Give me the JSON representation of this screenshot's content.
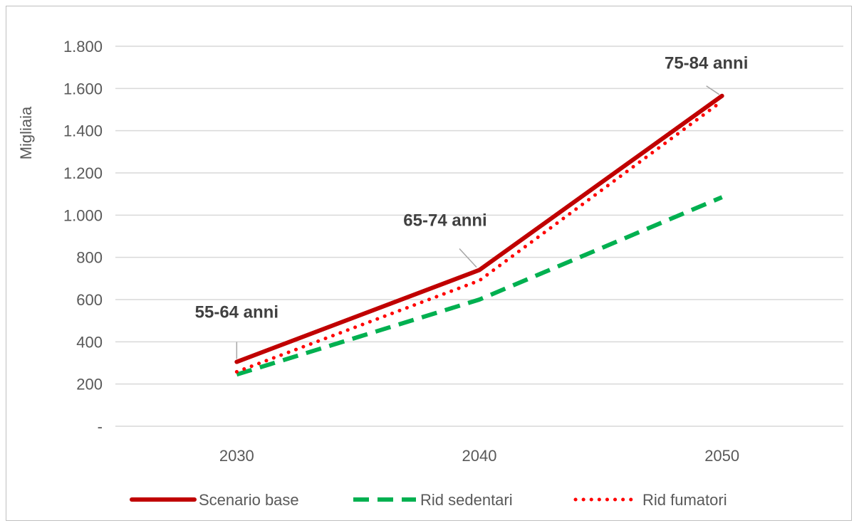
{
  "chart_data": {
    "type": "line",
    "categories": [
      "2030",
      "2040",
      "2050"
    ],
    "ylabel": "Migliaia",
    "ylim": [
      0,
      1800
    ],
    "yticks": [
      {
        "value": 0,
        "label": "-"
      },
      {
        "value": 200,
        "label": "200"
      },
      {
        "value": 400,
        "label": "400"
      },
      {
        "value": 600,
        "label": "600"
      },
      {
        "value": 800,
        "label": "800"
      },
      {
        "value": 1000,
        "label": "1.000"
      },
      {
        "value": 1200,
        "label": "1.200"
      },
      {
        "value": 1400,
        "label": "1.400"
      },
      {
        "value": 1600,
        "label": "1.600"
      },
      {
        "value": 1800,
        "label": "1.800"
      }
    ],
    "grid": true,
    "legend_position": "bottom",
    "series": [
      {
        "name": "Scenario base",
        "values": [
          305,
          740,
          1565
        ],
        "color": "#c00000",
        "style": "solid"
      },
      {
        "name": "Rid sedentari",
        "values": [
          245,
          600,
          1085
        ],
        "color": "#00b050",
        "style": "dashed"
      },
      {
        "name": "Rid fumatori",
        "values": [
          258,
          690,
          1540
        ],
        "color": "#ff0000",
        "style": "dotted"
      }
    ],
    "annotations": [
      {
        "text": "55-64 anni",
        "category_index": 0,
        "value": 305
      },
      {
        "text": "65-74 anni",
        "category_index": 1,
        "value": 740
      },
      {
        "text": "75-84 anni",
        "category_index": 2,
        "value": 1565
      }
    ]
  }
}
